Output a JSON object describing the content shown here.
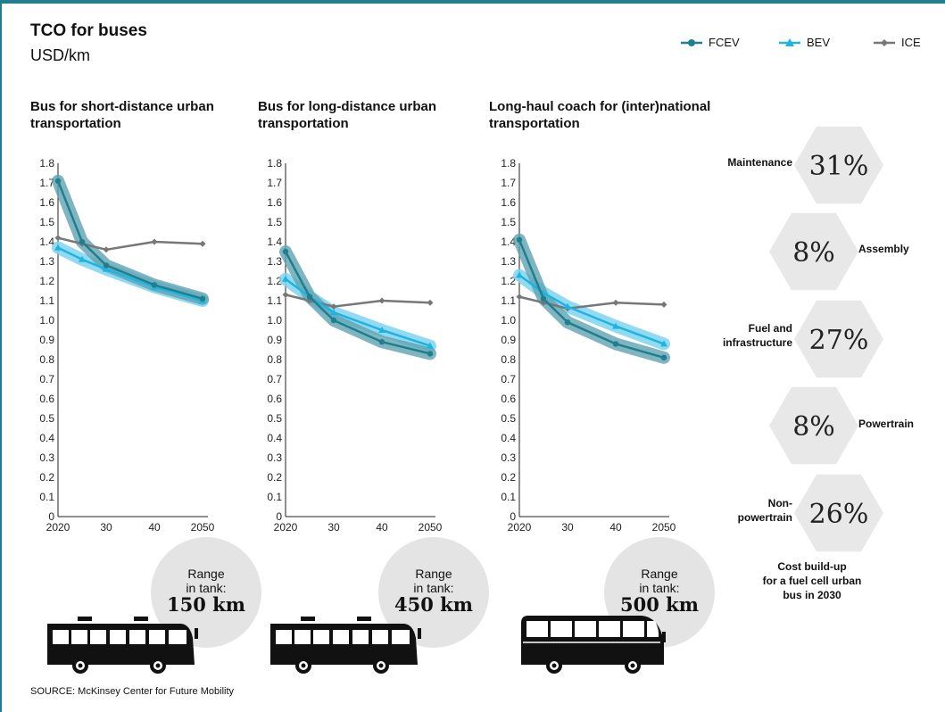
{
  "header": {
    "title": "TCO for buses",
    "subtitle": "USD/km"
  },
  "legend": [
    {
      "name": "FCEV",
      "color": "#1f7f8f",
      "marker": "circle"
    },
    {
      "name": "BEV",
      "color": "#1fb4e0",
      "marker": "triangle"
    },
    {
      "name": "ICE",
      "color": "#777777",
      "marker": "diamond"
    }
  ],
  "colors": {
    "fcev": "#1f7f8f",
    "bev": "#1fb4e0",
    "ice": "#777777",
    "halo_fcev": "#5fa3b0",
    "halo_bev": "#7fd3f0",
    "hexagon": "#e8e8e8",
    "circle": "#e4e4e4"
  },
  "chart_data": [
    {
      "type": "line",
      "title": "Bus for short-distance urban transportation",
      "x": [
        2020,
        2025,
        2030,
        2040,
        2050
      ],
      "x_tick_labels": [
        "2020",
        "30",
        "40",
        "2050"
      ],
      "ylim": [
        0,
        1.8
      ],
      "y_ticks": [
        "0",
        "0.1",
        "0.2",
        "0.3",
        "0.4",
        "0.5",
        "0.6",
        "0.7",
        "0.8",
        "0.9",
        "1.0",
        "1.1",
        "1.2",
        "1.3",
        "1.4",
        "1.5",
        "1.6",
        "1.7",
        "1.8"
      ],
      "series": [
        {
          "name": "FCEV",
          "values": [
            1.71,
            1.4,
            1.28,
            1.18,
            1.11
          ]
        },
        {
          "name": "BEV",
          "values": [
            1.37,
            1.31,
            1.26,
            1.17,
            1.1
          ]
        },
        {
          "name": "ICE",
          "values": [
            1.42,
            1.39,
            1.36,
            1.4,
            1.39
          ]
        }
      ],
      "range": {
        "label": "Range\nin tank:",
        "value": "150 km"
      },
      "bus": "urban"
    },
    {
      "type": "line",
      "title": "Bus for long-distance urban transportation",
      "x": [
        2020,
        2025,
        2030,
        2040,
        2050
      ],
      "x_tick_labels": [
        "2020",
        "30",
        "40",
        "2050"
      ],
      "ylim": [
        0,
        1.8
      ],
      "y_ticks": [
        "0",
        "0.1",
        "0.2",
        "0.3",
        "0.4",
        "0.5",
        "0.6",
        "0.7",
        "0.8",
        "0.9",
        "1.0",
        "1.1",
        "1.2",
        "1.3",
        "1.4",
        "1.5",
        "1.6",
        "1.7",
        "1.8"
      ],
      "series": [
        {
          "name": "FCEV",
          "values": [
            1.35,
            1.12,
            1.0,
            0.89,
            0.83
          ]
        },
        {
          "name": "BEV",
          "values": [
            1.21,
            1.12,
            1.04,
            0.95,
            0.87
          ]
        },
        {
          "name": "ICE",
          "values": [
            1.13,
            1.1,
            1.07,
            1.1,
            1.09
          ]
        }
      ],
      "range": {
        "label": "Range\nin tank:",
        "value": "450 km"
      },
      "bus": "urban"
    },
    {
      "type": "line",
      "title": "Long-haul coach for (inter)national transportation",
      "x": [
        2020,
        2025,
        2030,
        2040,
        2050
      ],
      "x_tick_labels": [
        "2020",
        "30",
        "40",
        "2050"
      ],
      "ylim": [
        0,
        1.8
      ],
      "y_ticks": [
        "0",
        "0.1",
        "0.2",
        "0.3",
        "0.4",
        "0.5",
        "0.6",
        "0.7",
        "0.8",
        "0.9",
        "1.0",
        "1.1",
        "1.2",
        "1.3",
        "1.4",
        "1.5",
        "1.6",
        "1.7",
        "1.8"
      ],
      "series": [
        {
          "name": "FCEV",
          "values": [
            1.41,
            1.11,
            0.99,
            0.88,
            0.81
          ]
        },
        {
          "name": "BEV",
          "values": [
            1.23,
            1.14,
            1.07,
            0.97,
            0.88
          ]
        },
        {
          "name": "ICE",
          "values": [
            1.12,
            1.09,
            1.06,
            1.09,
            1.08
          ]
        }
      ],
      "range": {
        "label": "Range\nin tank:",
        "value": "500 km"
      },
      "bus": "coach"
    }
  ],
  "cost_buildup": {
    "items": [
      {
        "label": "Maintenance",
        "value": "31%"
      },
      {
        "label": "Assembly",
        "value": "8%"
      },
      {
        "label": "Fuel and\ninfrastructure",
        "value": "27%"
      },
      {
        "label": "Powertrain",
        "value": "8%"
      },
      {
        "label": "Non-\npowertrain",
        "value": "26%"
      }
    ],
    "caption": "Cost build-up\nfor a fuel cell urban\nbus in 2030"
  },
  "source": "SOURCE: McKinsey Center for Future Mobility"
}
